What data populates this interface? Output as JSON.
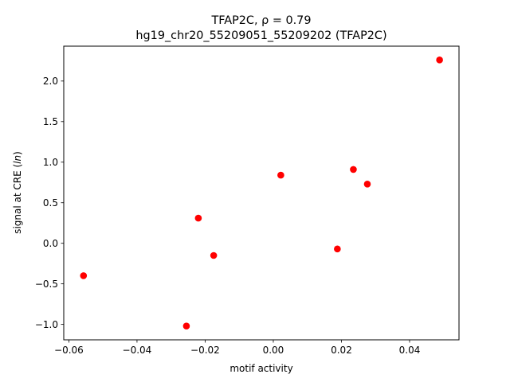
{
  "chart_data": {
    "type": "scatter",
    "title_line1": "TFAP2C, ρ = 0.79",
    "title_line2": "hg19_chr20_55209051_55209202 (TFAP2C)",
    "xlabel": "motif activity",
    "ylabel": "signal at CRE (ln)",
    "xlim": [
      -0.0615,
      0.0545
    ],
    "ylim": [
      -1.19,
      2.43
    ],
    "xticks": [
      {
        "value": -0.06,
        "label": "−0.06"
      },
      {
        "value": -0.04,
        "label": "−0.04"
      },
      {
        "value": -0.02,
        "label": "−0.02"
      },
      {
        "value": 0.0,
        "label": "0.00"
      },
      {
        "value": 0.02,
        "label": "0.02"
      },
      {
        "value": 0.04,
        "label": "0.04"
      }
    ],
    "yticks": [
      {
        "value": -1.0,
        "label": "−1.0"
      },
      {
        "value": -0.5,
        "label": "−0.5"
      },
      {
        "value": 0.0,
        "label": "0.0"
      },
      {
        "value": 0.5,
        "label": "0.5"
      },
      {
        "value": 1.0,
        "label": "1.0"
      },
      {
        "value": 1.5,
        "label": "1.5"
      },
      {
        "value": 2.0,
        "label": "2.0"
      }
    ],
    "grid": false,
    "marker_color": "#ff0000",
    "points": [
      {
        "x": -0.0557,
        "y": -0.4
      },
      {
        "x": -0.0255,
        "y": -1.02
      },
      {
        "x": -0.022,
        "y": 0.31
      },
      {
        "x": -0.0175,
        "y": -0.15
      },
      {
        "x": 0.0022,
        "y": 0.84
      },
      {
        "x": 0.0188,
        "y": -0.07
      },
      {
        "x": 0.0235,
        "y": 0.91
      },
      {
        "x": 0.0276,
        "y": 0.73
      },
      {
        "x": 0.0488,
        "y": 2.26
      }
    ]
  }
}
